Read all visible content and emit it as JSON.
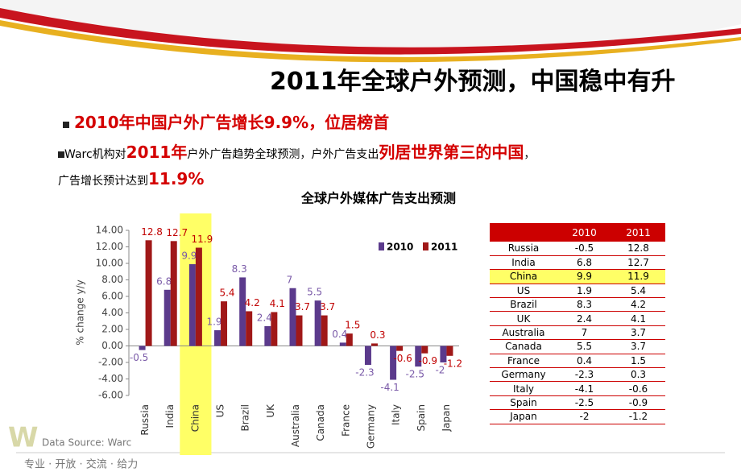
{
  "slide": {
    "title": "2011年全球户外预测，中国稳中有升",
    "bullet1": "2010年中国户外广告增长9.9%，位居榜首",
    "bullet2": [
      "Warc机构对",
      "2011年",
      "户外广告趋势全球预测，户外广告支出",
      "列居世界第三的中国",
      "，"
    ],
    "bullet3": [
      "广告增长预计达到",
      "11.9%"
    ],
    "source": "Data Source: Warc",
    "footer": "专业 · 开放 · 交流 · 给力"
  },
  "chart_data": {
    "type": "bar",
    "title": "全球户外媒体广告支出预测",
    "y_label": "% change y/y",
    "categories": [
      "Russia",
      "India",
      "China",
      "US",
      "Brazil",
      "UK",
      "Australia",
      "Canada",
      "France",
      "Germany",
      "Italy",
      "Spain",
      "Japan"
    ],
    "series": [
      {
        "name": "2010",
        "color": "#5b3a8c",
        "values": [
          -0.5,
          6.8,
          9.9,
          1.9,
          8.3,
          2.4,
          7,
          5.5,
          0.4,
          -2.3,
          -4.1,
          -2.5,
          -2
        ]
      },
      {
        "name": "2011",
        "color": "#a01818",
        "values": [
          12.8,
          12.7,
          11.9,
          5.4,
          4.2,
          4.1,
          3.7,
          3.7,
          1.5,
          0.3,
          -0.6,
          -0.9,
          -1.2
        ]
      }
    ],
    "ylim": [
      -6,
      14
    ],
    "yticks": [
      {
        "value": -6,
        "label": "-6.00"
      },
      {
        "value": -4,
        "label": "-4.00"
      },
      {
        "value": -2,
        "label": "-2.00"
      },
      {
        "value": 0,
        "label": "0.00"
      },
      {
        "value": 2,
        "label": "2.00"
      },
      {
        "value": 4,
        "label": "4.00"
      },
      {
        "value": 6,
        "label": "6.00"
      },
      {
        "value": 8,
        "label": "8.00"
      },
      {
        "value": 10,
        "label": "10.00"
      },
      {
        "value": 12,
        "label": "12.00"
      },
      {
        "value": 14,
        "label": "14.00"
      }
    ],
    "highlight": "China",
    "highlight_color": "#ffff66",
    "legend": "top-right"
  },
  "table": {
    "columns": [
      "2010",
      "2011"
    ],
    "rows": [
      [
        "Russia",
        -0.5,
        12.8
      ],
      [
        "India",
        6.8,
        12.7
      ],
      [
        "China",
        9.9,
        11.9
      ],
      [
        "US",
        1.9,
        5.4
      ],
      [
        "Brazil",
        8.3,
        4.2
      ],
      [
        "UK",
        2.4,
        4.1
      ],
      [
        "Australia",
        7,
        3.7
      ],
      [
        "Canada",
        5.5,
        3.7
      ],
      [
        "France",
        0.4,
        1.5
      ],
      [
        "Germany",
        -2.3,
        0.3
      ],
      [
        "Italy",
        -4.1,
        -0.6
      ],
      [
        "Spain",
        -2.5,
        -0.9
      ],
      [
        "Japan",
        -2,
        -1.2
      ]
    ],
    "highlight": "China"
  }
}
